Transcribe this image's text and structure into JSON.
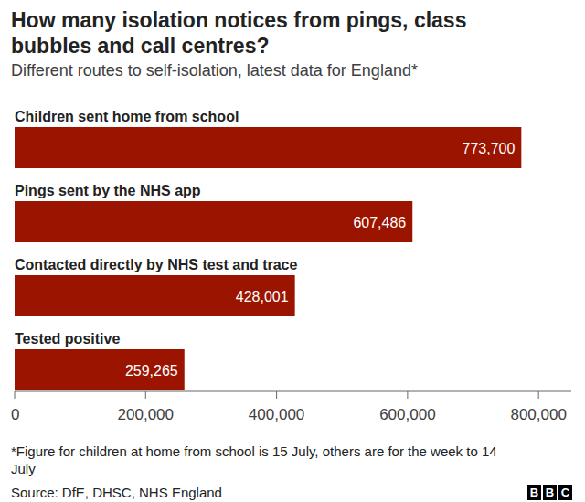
{
  "chart_data": {
    "type": "bar",
    "orientation": "horizontal",
    "title": "How many isolation notices from pings, class bubbles and call centres?",
    "subtitle": "Different routes to self-isolation, latest data for England*",
    "categories": [
      "Children sent home from school",
      "Pings sent by the NHS app",
      "Contacted directly by NHS test and trace",
      "Tested positive"
    ],
    "values": [
      773700,
      607486,
      428001,
      259265
    ],
    "value_labels": [
      "773,700",
      "607,486",
      "428,001",
      "259,265"
    ],
    "color": "#9b1400",
    "data_labels": true,
    "grid": false,
    "xlim": [
      0,
      850000
    ],
    "xticks": [
      0,
      {
        "value": 200000,
        "label": "200,000"
      },
      {
        "value": 400000,
        "label": "400,000"
      },
      {
        "value": 600000,
        "label": "600,000"
      },
      {
        "value": 800000,
        "label": "800,000"
      }
    ],
    "note": "*Figure for children at home from school is 15 July, others are for the week to 14 July",
    "source": "Source: DfE, DHSC, NHS England",
    "logo": "BBC"
  }
}
